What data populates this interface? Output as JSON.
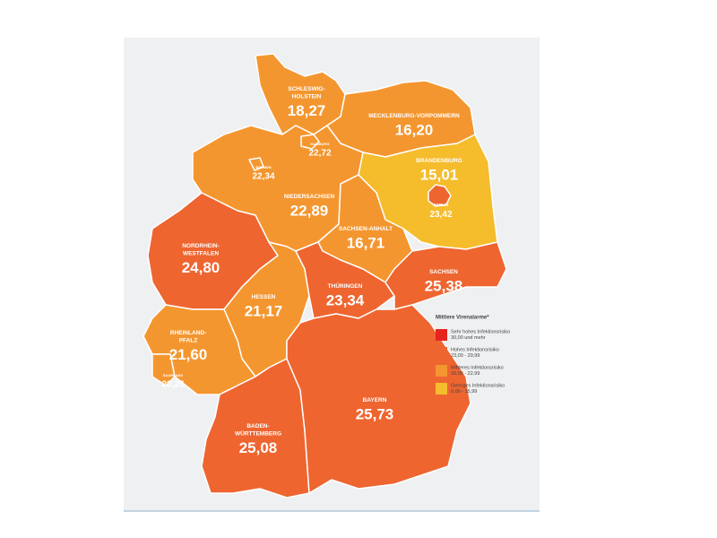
{
  "regions": [
    {
      "name": [
        "SCHLESWIG-",
        "HOLSTEIN"
      ],
      "value": "18,27",
      "color": "#f4962f"
    },
    {
      "name": [
        "MECKLENBURG-VORPOMMERN"
      ],
      "value": "16,20",
      "color": "#f4962f"
    },
    {
      "name": [
        "HAMBURG"
      ],
      "value": "22,72",
      "color": "#f4962f"
    },
    {
      "name": [
        "BREMEN"
      ],
      "value": "22,34",
      "color": "#f4962f"
    },
    {
      "name": [
        "NIEDERSACHSEN"
      ],
      "value": "22,89",
      "color": "#f4962f"
    },
    {
      "name": [
        "BRANDENBURG"
      ],
      "value": "15,01",
      "color": "#f5bc2c"
    },
    {
      "name": [
        "BERLIN"
      ],
      "value": "23,42",
      "color": "#ee6530"
    },
    {
      "name": [
        "SACHSEN-ANHALT"
      ],
      "value": "16,71",
      "color": "#f4962f"
    },
    {
      "name": [
        "NORDRHEIN-",
        "WESTFALEN"
      ],
      "value": "24,80",
      "color": "#ee6530"
    },
    {
      "name": [
        "HESSEN"
      ],
      "value": "21,17",
      "color": "#f4962f"
    },
    {
      "name": [
        "THÜRINGEN"
      ],
      "value": "23,34",
      "color": "#ee6530"
    },
    {
      "name": [
        "SACHSEN"
      ],
      "value": "25,38",
      "color": "#ee6530"
    },
    {
      "name": [
        "RHEINLAND-",
        "PFALZ"
      ],
      "value": "21,60",
      "color": "#f4962f"
    },
    {
      "name": [
        "SAARLAND"
      ],
      "value": "20,26",
      "color": "#f4962f"
    },
    {
      "name": [
        "BADEN-",
        "WÜRTTEMBERG"
      ],
      "value": "25,08",
      "color": "#ee6530"
    },
    {
      "name": [
        "BAYERN"
      ],
      "value": "25,73",
      "color": "#ee6530"
    }
  ],
  "legend": {
    "title": "Mittlere Virenalarme*",
    "items": [
      {
        "color": "#e52420",
        "lines": [
          "Sehr hohes Infektionsrisiko",
          "30,00 und mehr"
        ]
      },
      {
        "color": "#ee6530",
        "lines": [
          "Hohes Infektionsrisiko",
          "23,00 - 29,99"
        ]
      },
      {
        "color": "#f4962f",
        "lines": [
          "Mittleres Infektionsrisiko",
          "16,00 - 22,99"
        ]
      },
      {
        "color": "#f5bc2c",
        "lines": [
          "Geringes Infektionsrisiko",
          "0,00 - 15,99"
        ]
      }
    ]
  }
}
